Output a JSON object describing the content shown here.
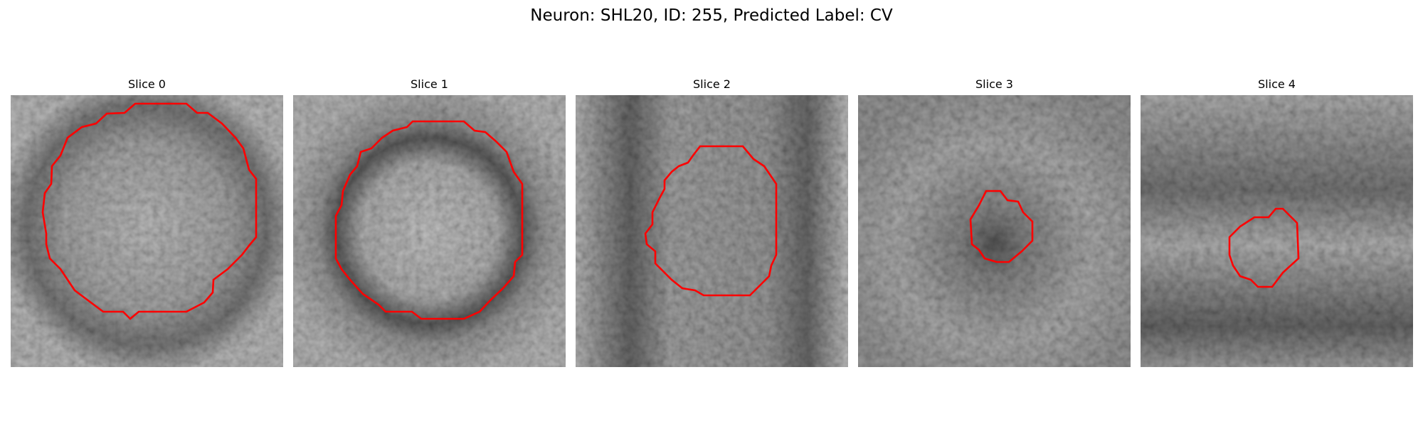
{
  "figure": {
    "title": "Neuron: SHL20, ID: 255, Predicted Label: CV",
    "contour_color": "#ff0000"
  },
  "slices": [
    {
      "title": "Slice 0"
    },
    {
      "title": "Slice 1"
    },
    {
      "title": "Slice 2"
    },
    {
      "title": "Slice 3"
    },
    {
      "title": "Slice 4"
    }
  ]
}
